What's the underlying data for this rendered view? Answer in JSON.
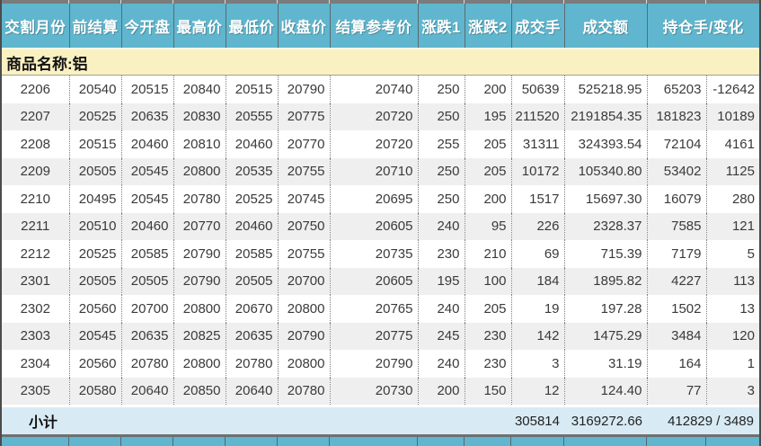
{
  "colors": {
    "header_bg": "#5FB6CE",
    "header_text": "#FFFFFF",
    "header_separator": "#5E6A6E",
    "product_row_bg": "#FAF1C2",
    "subtotal_row_bg": "#D8EBF5",
    "alt_row_bg": "#EFEFEF",
    "row_bg": "#FFFFFF",
    "data_text": "#3A3A3A",
    "dotted_separator": "#7E7E7E",
    "edge_bar": "#7B7B7B"
  },
  "table": {
    "headers": [
      {
        "label": "交割月份"
      },
      {
        "label": "前结算"
      },
      {
        "label": "今开盘"
      },
      {
        "label": "最高价"
      },
      {
        "label": "最低价"
      },
      {
        "label": "收盘价"
      },
      {
        "label": "结算参考价"
      },
      {
        "label": "涨跌1"
      },
      {
        "label": "涨跌2"
      },
      {
        "label": "成交手"
      },
      {
        "label": "成交额"
      },
      {
        "label": "持仓手/变化",
        "colspan": 2
      }
    ],
    "product_label": "商品名称:铝",
    "rows": [
      [
        "2206",
        "20540",
        "20515",
        "20840",
        "20515",
        "20790",
        "20740",
        "250",
        "200",
        "50639",
        "525218.95",
        "65203",
        "-12642"
      ],
      [
        "2207",
        "20525",
        "20635",
        "20830",
        "20555",
        "20775",
        "20720",
        "250",
        "195",
        "211520",
        "2191854.35",
        "181823",
        "10189"
      ],
      [
        "2208",
        "20515",
        "20460",
        "20810",
        "20460",
        "20770",
        "20720",
        "255",
        "205",
        "31311",
        "324393.54",
        "72104",
        "4161"
      ],
      [
        "2209",
        "20505",
        "20545",
        "20800",
        "20535",
        "20755",
        "20710",
        "250",
        "205",
        "10172",
        "105340.80",
        "53402",
        "1125"
      ],
      [
        "2210",
        "20495",
        "20545",
        "20780",
        "20525",
        "20745",
        "20695",
        "250",
        "200",
        "1517",
        "15697.30",
        "16079",
        "280"
      ],
      [
        "2211",
        "20510",
        "20460",
        "20770",
        "20460",
        "20750",
        "20605",
        "240",
        "95",
        "226",
        "2328.37",
        "7585",
        "121"
      ],
      [
        "2212",
        "20525",
        "20585",
        "20790",
        "20585",
        "20755",
        "20735",
        "230",
        "210",
        "69",
        "715.39",
        "7179",
        "5"
      ],
      [
        "2301",
        "20505",
        "20505",
        "20790",
        "20505",
        "20700",
        "20605",
        "195",
        "100",
        "184",
        "1895.82",
        "4227",
        "113"
      ],
      [
        "2302",
        "20560",
        "20700",
        "20800",
        "20670",
        "20800",
        "20765",
        "240",
        "205",
        "19",
        "197.28",
        "1502",
        "13"
      ],
      [
        "2303",
        "20545",
        "20635",
        "20825",
        "20635",
        "20790",
        "20775",
        "245",
        "230",
        "142",
        "1475.29",
        "3484",
        "120"
      ],
      [
        "2304",
        "20560",
        "20780",
        "20800",
        "20780",
        "20800",
        "20790",
        "240",
        "230",
        "3",
        "31.19",
        "164",
        "1"
      ],
      [
        "2305",
        "20580",
        "20640",
        "20850",
        "20640",
        "20780",
        "20730",
        "200",
        "150",
        "12",
        "124.40",
        "77",
        "3"
      ]
    ],
    "subtotal": {
      "label": "小计",
      "volume": "305814",
      "turnover": "3169272.66",
      "open_interest_change": "412829 / 3489"
    }
  }
}
